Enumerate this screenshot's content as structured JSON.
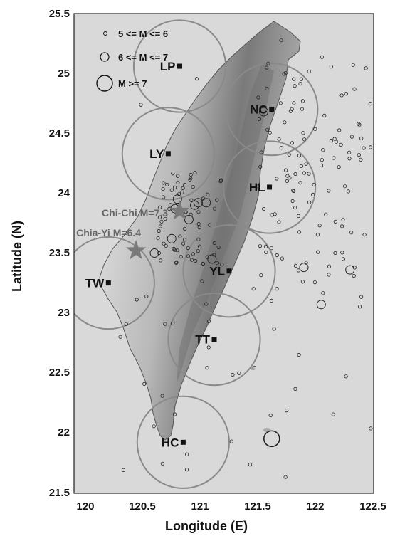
{
  "axes": {
    "xlabel": "Longitude (E)",
    "ylabel": "Latitude (N)",
    "x_ticks": [
      "120",
      "120.5",
      "121",
      "121.5",
      "122",
      "122.5"
    ],
    "y_ticks": [
      "25.5",
      "25",
      "24.5",
      "24",
      "23.5",
      "23",
      "22.5",
      "22",
      "21.5"
    ]
  },
  "legend": {
    "items": [
      {
        "label": "5 <= M <= 6"
      },
      {
        "label": "6 <= M <= 7"
      },
      {
        "label": "M >= 7"
      }
    ]
  },
  "stations": [
    {
      "label": "LP",
      "lon": 120.82,
      "lat": 25.06
    },
    {
      "label": "NC",
      "lon": 121.62,
      "lat": 24.7
    },
    {
      "label": "LY",
      "lon": 120.72,
      "lat": 24.33
    },
    {
      "label": "HL",
      "lon": 121.6,
      "lat": 24.05
    },
    {
      "label": "YL",
      "lon": 121.25,
      "lat": 23.35
    },
    {
      "label": "TW",
      "lon": 120.2,
      "lat": 23.25
    },
    {
      "label": "TT",
      "lon": 121.12,
      "lat": 22.78
    },
    {
      "label": "HC",
      "lon": 120.85,
      "lat": 21.92
    }
  ],
  "coverage_radius_deg": 0.4,
  "mainshocks": [
    {
      "label": "Chi-Chi M=7.3",
      "lon": 120.82,
      "lat": 23.85
    },
    {
      "label": "Chia-Yi M=6.4",
      "lon": 120.44,
      "lat": 23.52
    }
  ],
  "colors": {
    "ocean": "#d9d9d9",
    "land": "#bcbcbc",
    "circle": "#8a8a8a",
    "star": "#7a7a7a"
  }
}
